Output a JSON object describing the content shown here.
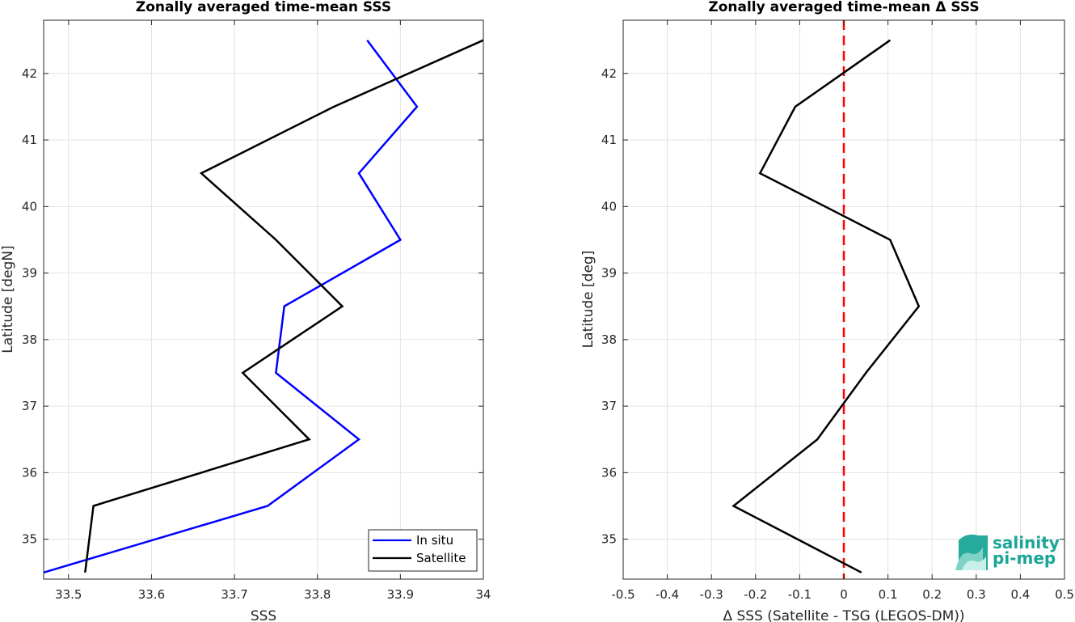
{
  "chart_data": [
    {
      "type": "line",
      "title": "Zonally averaged time-mean SSS",
      "xlabel": "SSS",
      "ylabel": "Latitude [degN]",
      "xlim": [
        33.47,
        34.0
      ],
      "ylim": [
        34.4,
        42.8
      ],
      "x_ticks": [
        "33.5",
        "33.6",
        "33.7",
        "33.8",
        "33.9",
        "34"
      ],
      "y_ticks": [
        "35",
        "36",
        "37",
        "38",
        "39",
        "40",
        "41",
        "42"
      ],
      "grid": true,
      "legend_position": "bottom-right",
      "series": [
        {
          "name": "In situ",
          "color": "#0000ff",
          "y": [
            34.5,
            35.5,
            36.5,
            37.5,
            38.5,
            39.5,
            40.5,
            41.5,
            42.5
          ],
          "x": [
            33.47,
            33.74,
            33.85,
            33.75,
            33.76,
            33.9,
            33.85,
            33.92,
            33.86
          ]
        },
        {
          "name": "Satellite",
          "color": "#000000",
          "y": [
            34.5,
            35.5,
            36.5,
            37.5,
            38.5,
            39.5,
            40.5,
            41.5,
            42.5
          ],
          "x": [
            33.52,
            33.53,
            33.79,
            33.71,
            33.83,
            33.75,
            33.66,
            33.82,
            34.0
          ]
        }
      ]
    },
    {
      "type": "line",
      "title": "Zonally averaged time-mean Δ SSS",
      "xlabel": "Δ SSS (Satellite - TSG (LEGOS-DM))",
      "ylabel": "Latitude [deg]",
      "xlim": [
        -0.5,
        0.5
      ],
      "ylim": [
        34.4,
        42.8
      ],
      "x_ticks": [
        "-0.5",
        "-0.4",
        "-0.3",
        "-0.2",
        "-0.1",
        "0",
        "0.1",
        "0.2",
        "0.3",
        "0.4",
        "0.5"
      ],
      "y_ticks": [
        "35",
        "36",
        "37",
        "38",
        "39",
        "40",
        "41",
        "42"
      ],
      "grid": true,
      "reference_line": {
        "x": 0,
        "color": "#ff0000",
        "style": "dashed"
      },
      "series": [
        {
          "color": "#000000",
          "y": [
            34.5,
            35.5,
            36.5,
            37.5,
            38.5,
            39.5,
            40.5,
            41.5,
            42.5
          ],
          "x": [
            0.04,
            -0.25,
            -0.06,
            0.05,
            0.17,
            0.105,
            -0.19,
            -0.11,
            0.105
          ]
        }
      ]
    }
  ],
  "logo": {
    "line1": "salinity",
    "line2": "pi-mep",
    "color": "#1aa596"
  }
}
